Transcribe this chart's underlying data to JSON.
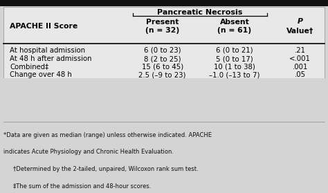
{
  "title": "Pancreatic Necrosis",
  "col_headers": [
    "APACHE II Score",
    "Present\n(n = 32)",
    "Absent\n(n = 61)",
    "P\nValue†"
  ],
  "rows": [
    [
      "At hospital admission",
      "6 (0 to 23)",
      "6 (0 to 21)",
      ".21"
    ],
    [
      "At 48 h after admission",
      "8 (2 to 25)",
      "5 (0 to 17)",
      "<.001"
    ],
    [
      "Combined‡",
      "15 (6 to 45)",
      "10 (1 to 38)",
      ".001"
    ],
    [
      "Change over 48 h",
      "2.5 (–9 to 23)",
      "–1.0 (–13 to 7)",
      ".05"
    ]
  ],
  "footnote_lines": [
    "*Data are given as median (range) unless otherwise indicated. APACHE",
    "indicates Acute Physiology and Chronic Health Evaluation.",
    "†Determined by the 2-tailed, unpaired, Wilcoxon rank sum test.",
    "‡The sum of the admission and 48-hour scores."
  ],
  "footnote_indents": [
    false,
    false,
    true,
    true
  ],
  "bg_color_table": "#e0e0e0",
  "bg_color_footnote": "#d4d4d4",
  "header_bar_color": "#111111"
}
